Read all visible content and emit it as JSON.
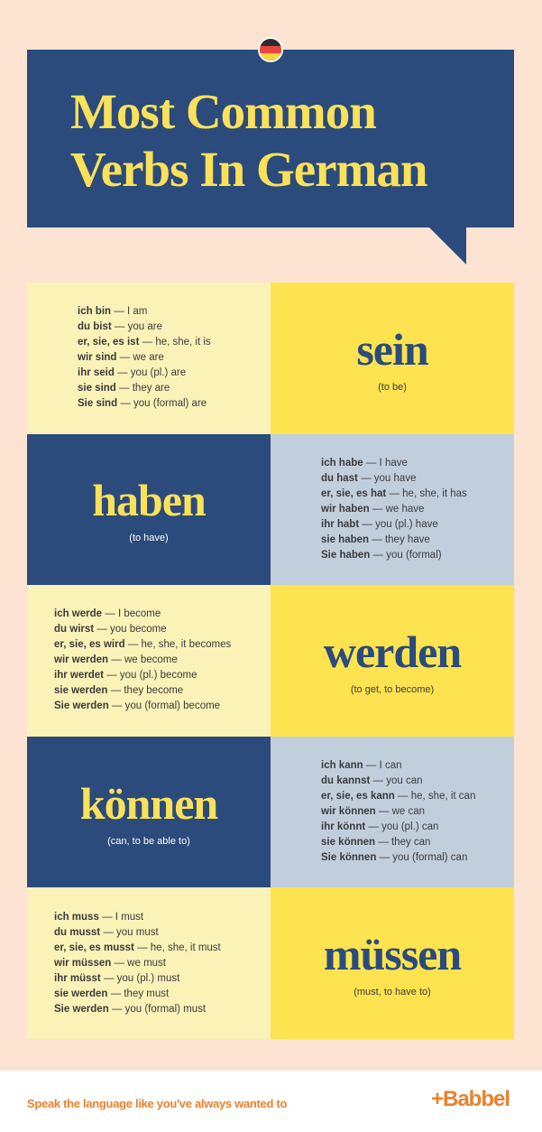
{
  "header": {
    "title_line1": "Most Common",
    "title_line2": "Verbs In German",
    "flag": "germany-flag-icon"
  },
  "colors": {
    "background": "#fde3d2",
    "navy": "#2b4b7c",
    "title_yellow": "#fbe15a",
    "pale_yellow": "#fbf2b8",
    "yellow": "#fde34f",
    "grey_blue": "#c1cedc",
    "orange": "#e8812d"
  },
  "verbs": [
    {
      "verb": "sein",
      "meaning": "(to be)",
      "layout": "conj-left",
      "forms": [
        [
          "ich bin",
          "— I am"
        ],
        [
          "du bist",
          "— you are"
        ],
        [
          "er, sie, es ist",
          "— he, she, it is"
        ],
        [
          "wir sind",
          "— we are"
        ],
        [
          "ihr seid",
          "— you (pl.) are"
        ],
        [
          "sie sind",
          "— they are"
        ],
        [
          "Sie sind",
          "— you (formal) are"
        ]
      ]
    },
    {
      "verb": "haben",
      "meaning": "(to have)",
      "layout": "verb-left",
      "forms": [
        [
          "ich habe",
          "— I have"
        ],
        [
          "du hast",
          "— you have"
        ],
        [
          "er, sie, es hat",
          "— he, she, it has"
        ],
        [
          "wir haben",
          "— we have"
        ],
        [
          "ihr habt",
          "— you (pl.) have"
        ],
        [
          "sie haben",
          "— they have"
        ],
        [
          "Sie haben",
          "— you (formal)"
        ]
      ]
    },
    {
      "verb": "werden",
      "meaning": "(to get, to become)",
      "layout": "conj-left",
      "forms": [
        [
          "ich werde",
          "— I become"
        ],
        [
          "du wirst",
          "— you become"
        ],
        [
          "er, sie, es wird",
          "— he, she, it becomes"
        ],
        [
          "wir werden",
          "— we become"
        ],
        [
          "ihr werdet",
          "— you (pl.) become"
        ],
        [
          "sie werden",
          "— they become"
        ],
        [
          "Sie werden",
          "— you (formal) become"
        ]
      ]
    },
    {
      "verb": "können",
      "meaning": "(can, to be able to)",
      "layout": "verb-left",
      "forms": [
        [
          "ich kann",
          "— I can"
        ],
        [
          "du kannst",
          "— you can"
        ],
        [
          "er, sie, es kann",
          "— he, she, it can"
        ],
        [
          "wir können",
          "— we can"
        ],
        [
          "ihr könnt",
          "— you (pl.) can"
        ],
        [
          "sie können",
          "— they can"
        ],
        [
          "Sie können",
          "— you (formal) can"
        ]
      ]
    },
    {
      "verb": "müssen",
      "meaning": "(must, to have to)",
      "layout": "conj-left",
      "forms": [
        [
          "ich muss",
          "— I must"
        ],
        [
          "du musst",
          "— you must"
        ],
        [
          "er, sie, es musst",
          "— he, she, it must"
        ],
        [
          "wir müssen",
          "— we must"
        ],
        [
          "ihr müsst",
          "— you (pl.) must"
        ],
        [
          "sie werden",
          "— they must"
        ],
        [
          "Sie werden",
          "— you (formal) must"
        ]
      ]
    }
  ],
  "footer": {
    "slogan": "Speak the language like you've always wanted to",
    "logo": "+Babbel"
  }
}
